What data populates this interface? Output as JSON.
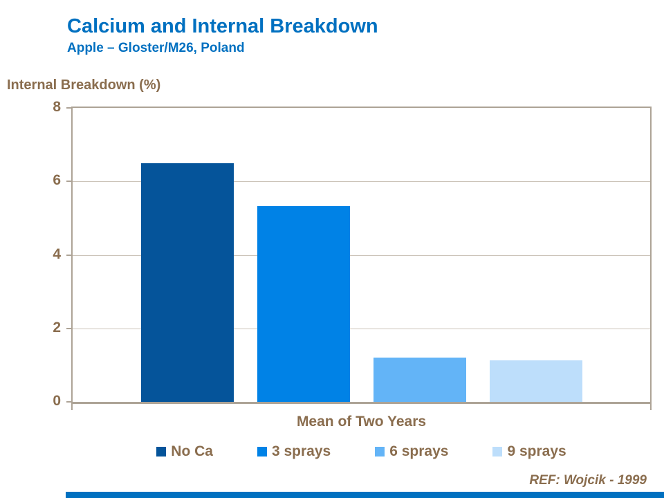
{
  "chart_data": {
    "type": "bar",
    "title": "Calcium and Internal Breakdown",
    "subtitle": "Apple – Gloster/M26, Poland",
    "ylabel": "Internal Breakdown (%)",
    "xlabel": "Mean of Two Years",
    "categories": [
      "Mean of Two Years"
    ],
    "series": [
      {
        "name": "No Ca",
        "values": [
          6.5
        ]
      },
      {
        "name": "3 sprays",
        "values": [
          5.33
        ]
      },
      {
        "name": "6 sprays",
        "values": [
          1.2
        ]
      },
      {
        "name": "9 sprays",
        "values": [
          1.13
        ]
      }
    ],
    "ylim": [
      0,
      8
    ],
    "yticks": [
      0,
      2,
      4,
      6,
      8
    ],
    "grid": true,
    "legend_position": "bottom"
  },
  "footer": {
    "reference": "REF: Wojcik - 1999"
  },
  "colors": {
    "title_blue": "#0070C0",
    "text_brown": "#8A6D4E",
    "axis": "#ADA396",
    "gridline": "#CBC3B8",
    "footer_bar": "#0070C0",
    "series": [
      "#05549A",
      "#0082E6",
      "#63B4F7",
      "#BDDEFB"
    ]
  }
}
